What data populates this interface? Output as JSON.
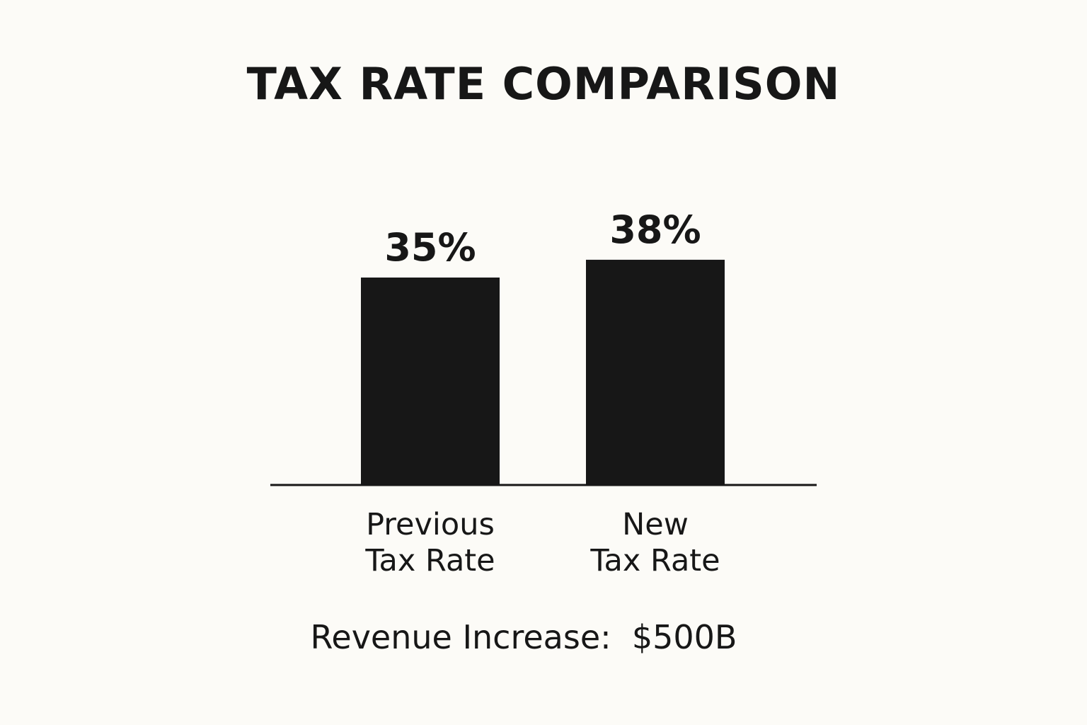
{
  "chart_data": {
    "type": "bar",
    "title": "TAX RATE COMPARISON",
    "categories": [
      [
        "Previous",
        "Tax Rate"
      ],
      [
        "New",
        "Tax Rate"
      ]
    ],
    "values": [
      35,
      38
    ],
    "value_labels": [
      "35%",
      "38%"
    ],
    "xlabel": "",
    "ylabel": "",
    "grid": false,
    "legend": "none",
    "bar_color": "#171717",
    "annotation": "Revenue Increase:  $500B"
  }
}
